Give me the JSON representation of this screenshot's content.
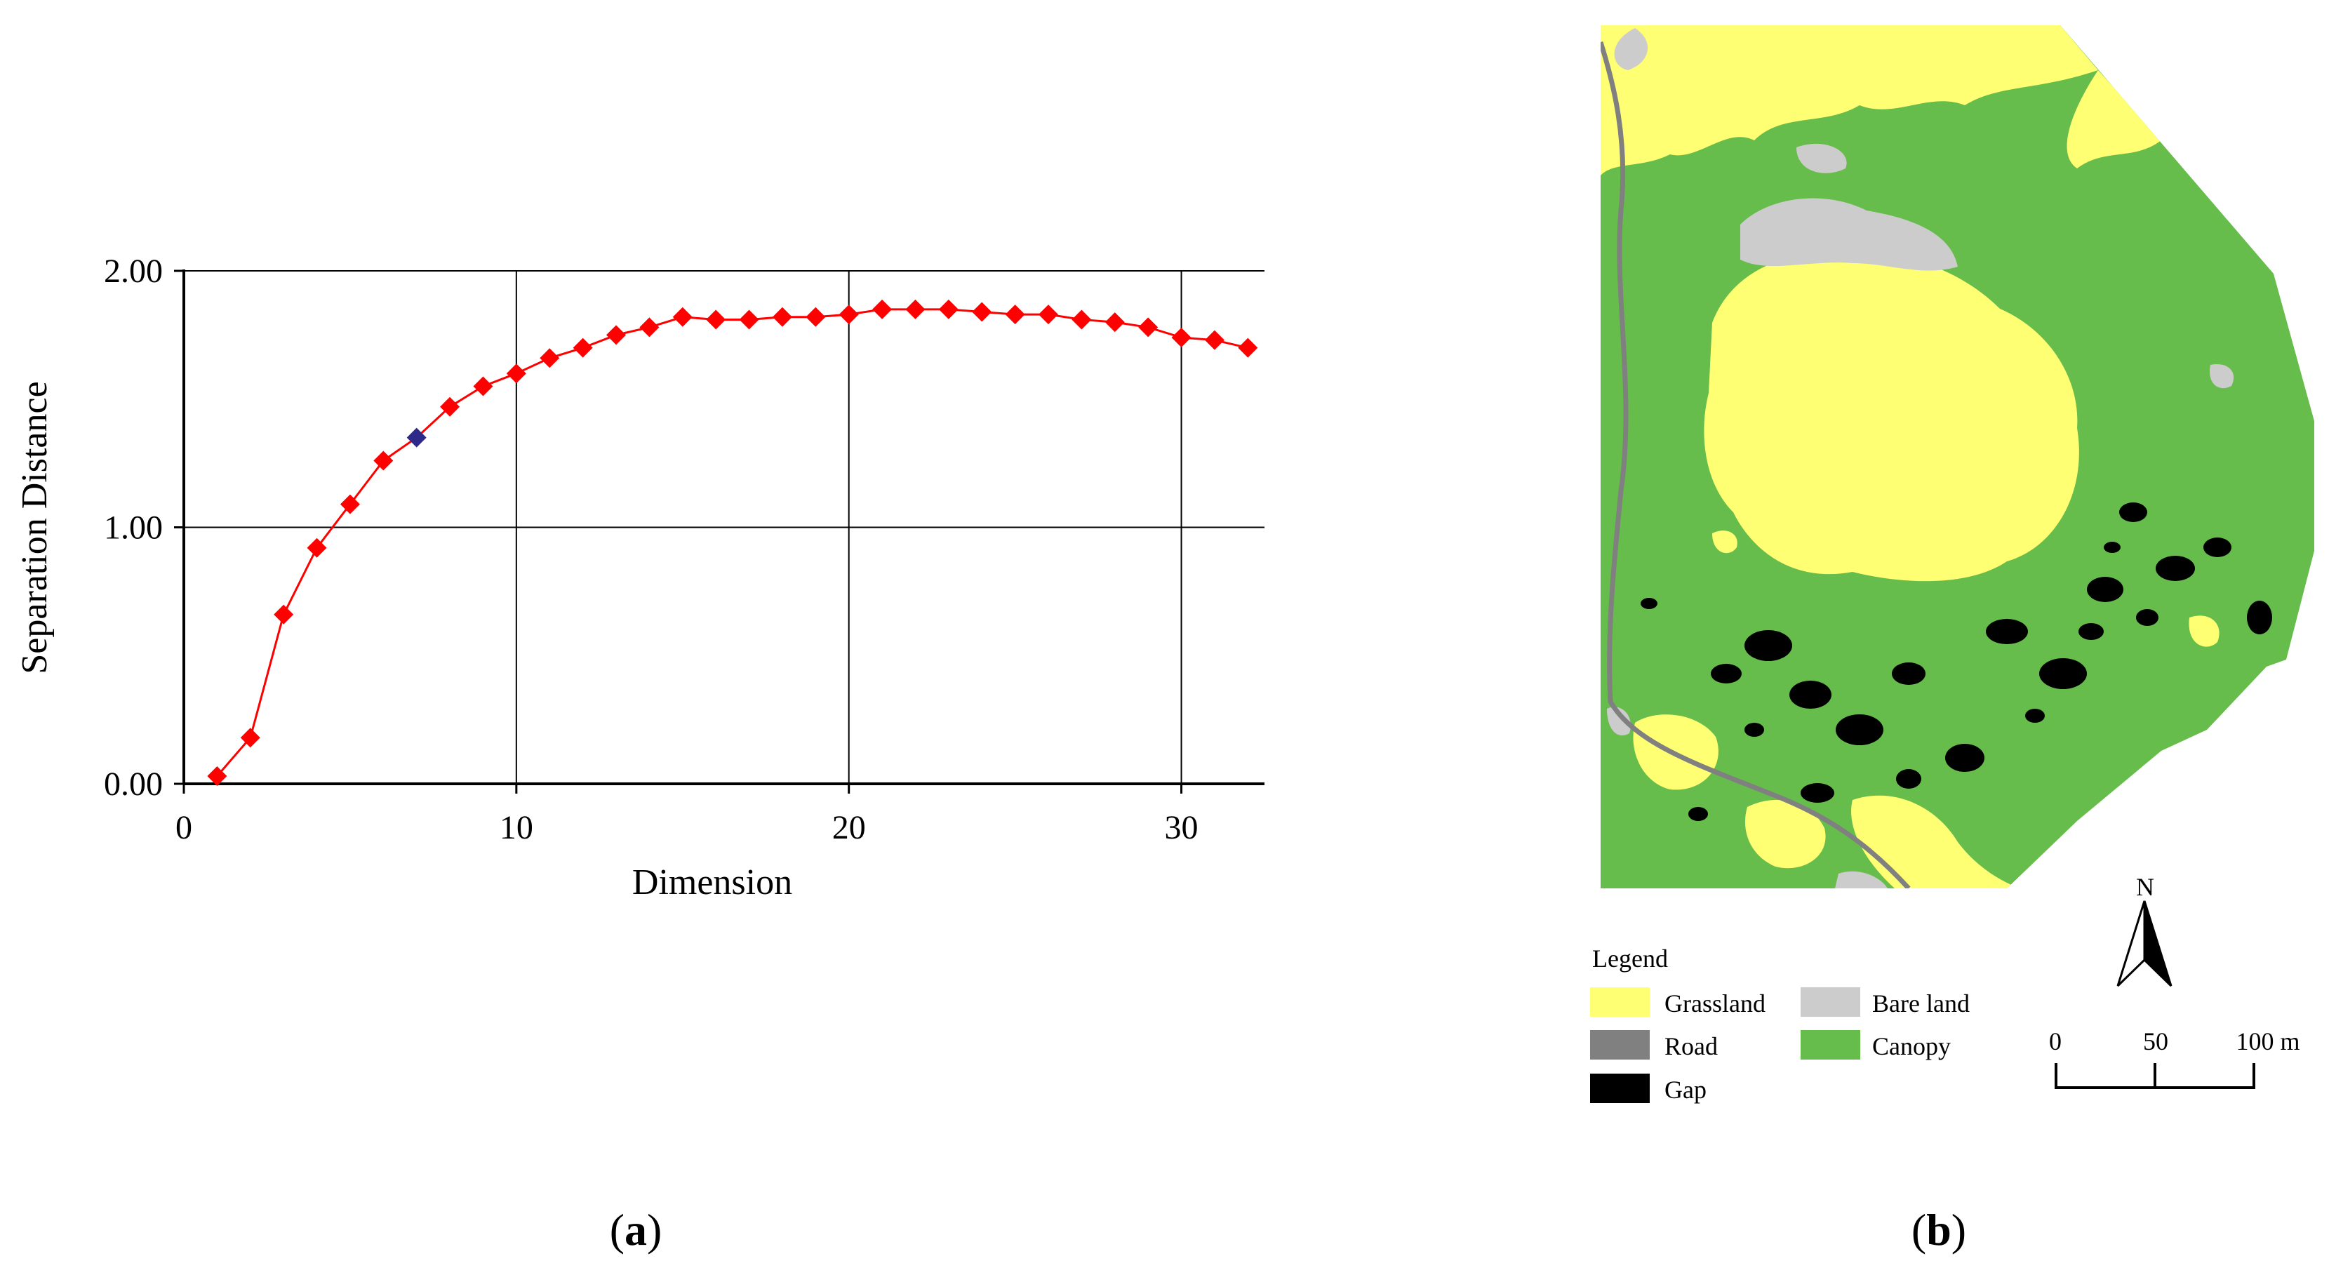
{
  "panel_labels": {
    "a": "a",
    "b": "b"
  },
  "chart_data": {
    "type": "line",
    "xlabel": "Dimension",
    "ylabel": "Separation Distance",
    "xlim": [
      0,
      32.5
    ],
    "ylim": [
      0,
      2
    ],
    "xticks": [
      0,
      10,
      20,
      30
    ],
    "xtick_labels": [
      "0",
      "10",
      "20",
      "30"
    ],
    "yticks": [
      0,
      1,
      2
    ],
    "ytick_labels": [
      "0.00",
      "1.00",
      "2.00"
    ],
    "grid": true,
    "marker": "diamond",
    "colors": {
      "series": "#ff0000",
      "highlight": "#2e2a8a"
    },
    "highlight_x": 7,
    "series": [
      {
        "x": [
          1,
          2,
          3,
          4,
          5,
          6,
          7,
          8,
          9,
          10,
          11,
          12,
          13,
          14,
          15,
          16,
          17,
          18,
          19,
          20,
          21,
          22,
          23,
          24,
          25,
          26,
          27,
          28,
          29,
          30,
          31,
          32
        ],
        "values": [
          0.03,
          0.18,
          0.66,
          0.92,
          1.09,
          1.26,
          1.35,
          1.47,
          1.55,
          1.6,
          1.66,
          1.7,
          1.75,
          1.78,
          1.82,
          1.81,
          1.81,
          1.82,
          1.82,
          1.83,
          1.85,
          1.85,
          1.85,
          1.84,
          1.83,
          1.83,
          1.81,
          1.8,
          1.78,
          1.74,
          1.73,
          1.7
        ]
      }
    ]
  },
  "map": {
    "legend_title": "Legend",
    "legend_items": [
      {
        "label": "Grassland",
        "color": "#ffff73"
      },
      {
        "label": "Bare land",
        "color": "#cccccc"
      },
      {
        "label": "Road",
        "color": "#808080"
      },
      {
        "label": "Canopy",
        "color": "#67bd4b"
      },
      {
        "label": "Gap",
        "color": "#000000"
      }
    ],
    "north_label": "N",
    "scale_labels": [
      "0",
      "50",
      "100 m"
    ]
  }
}
